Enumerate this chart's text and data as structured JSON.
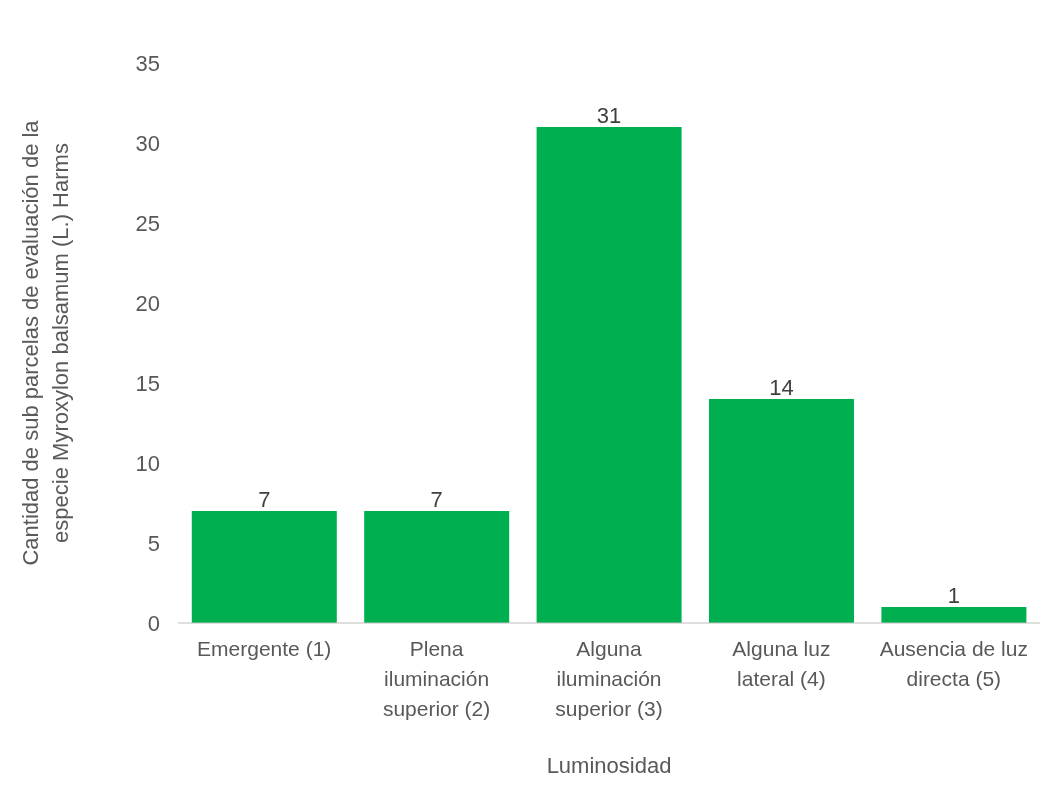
{
  "chart_data": {
    "type": "bar",
    "xlabel": "Luminosidad",
    "ylabel": "Cantidad de sub parcelas de evaluación de la\nespecie Myroxylon balsamum (L.) Harms",
    "categories": [
      "Emergente (1)",
      "Plena iluminación superior (2)",
      "Alguna iluminación superior (3)",
      "Alguna luz lateral (4)",
      "Ausencia de luz directa (5)"
    ],
    "values": [
      7,
      7,
      31,
      14,
      1
    ],
    "color": "#00b050",
    "ylim": [
      0,
      35
    ],
    "yticks": [
      0,
      5,
      10,
      15,
      20,
      25,
      30,
      35
    ],
    "grid": false,
    "legend": false,
    "data_labels": true
  }
}
